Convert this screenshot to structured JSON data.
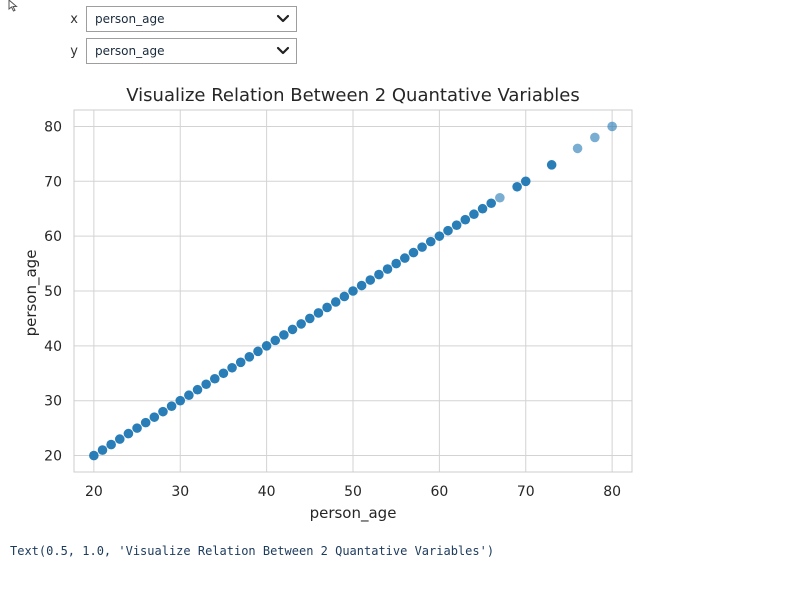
{
  "widgets": {
    "x": {
      "label": "x",
      "value": "person_age"
    },
    "y": {
      "label": "y",
      "value": "person_age"
    }
  },
  "output_text": "Text(0.5, 1.0, 'Visualize Relation Between 2 Quantative Variables')",
  "chart_data": {
    "type": "scatter",
    "title": "Visualize Relation Between 2 Quantative Variables",
    "xlabel": "person_age",
    "ylabel": "person_age",
    "xlim": [
      17.7,
      82.3
    ],
    "ylim": [
      17.0,
      83.0
    ],
    "xticks": [
      20,
      30,
      40,
      50,
      60,
      70,
      80
    ],
    "yticks": [
      20,
      30,
      40,
      50,
      60,
      70,
      80
    ],
    "grid": true,
    "color": "#1f77b4",
    "points": [
      {
        "x": 20,
        "y": 20
      },
      {
        "x": 21,
        "y": 21
      },
      {
        "x": 22,
        "y": 22
      },
      {
        "x": 23,
        "y": 23
      },
      {
        "x": 24,
        "y": 24
      },
      {
        "x": 25,
        "y": 25
      },
      {
        "x": 26,
        "y": 26
      },
      {
        "x": 27,
        "y": 27
      },
      {
        "x": 28,
        "y": 28
      },
      {
        "x": 29,
        "y": 29
      },
      {
        "x": 30,
        "y": 30
      },
      {
        "x": 31,
        "y": 31
      },
      {
        "x": 32,
        "y": 32
      },
      {
        "x": 33,
        "y": 33
      },
      {
        "x": 34,
        "y": 34
      },
      {
        "x": 35,
        "y": 35
      },
      {
        "x": 36,
        "y": 36
      },
      {
        "x": 37,
        "y": 37
      },
      {
        "x": 38,
        "y": 38
      },
      {
        "x": 39,
        "y": 39
      },
      {
        "x": 40,
        "y": 40
      },
      {
        "x": 41,
        "y": 41
      },
      {
        "x": 42,
        "y": 42
      },
      {
        "x": 43,
        "y": 43
      },
      {
        "x": 44,
        "y": 44
      },
      {
        "x": 45,
        "y": 45
      },
      {
        "x": 46,
        "y": 46
      },
      {
        "x": 47,
        "y": 47
      },
      {
        "x": 48,
        "y": 48
      },
      {
        "x": 49,
        "y": 49
      },
      {
        "x": 50,
        "y": 50
      },
      {
        "x": 51,
        "y": 51
      },
      {
        "x": 52,
        "y": 52
      },
      {
        "x": 53,
        "y": 53
      },
      {
        "x": 54,
        "y": 54
      },
      {
        "x": 55,
        "y": 55
      },
      {
        "x": 56,
        "y": 56
      },
      {
        "x": 57,
        "y": 57
      },
      {
        "x": 58,
        "y": 58
      },
      {
        "x": 59,
        "y": 59
      },
      {
        "x": 60,
        "y": 60
      },
      {
        "x": 61,
        "y": 61
      },
      {
        "x": 62,
        "y": 62
      },
      {
        "x": 63,
        "y": 63
      },
      {
        "x": 64,
        "y": 64
      },
      {
        "x": 65,
        "y": 65
      },
      {
        "x": 66,
        "y": 66
      },
      {
        "x": 67,
        "y": 67,
        "alpha": 0.6
      },
      {
        "x": 69,
        "y": 69
      },
      {
        "x": 70,
        "y": 70
      },
      {
        "x": 73,
        "y": 73
      },
      {
        "x": 76,
        "y": 76,
        "alpha": 0.6
      },
      {
        "x": 78,
        "y": 78,
        "alpha": 0.6
      },
      {
        "x": 80,
        "y": 80,
        "alpha": 0.6
      }
    ]
  }
}
